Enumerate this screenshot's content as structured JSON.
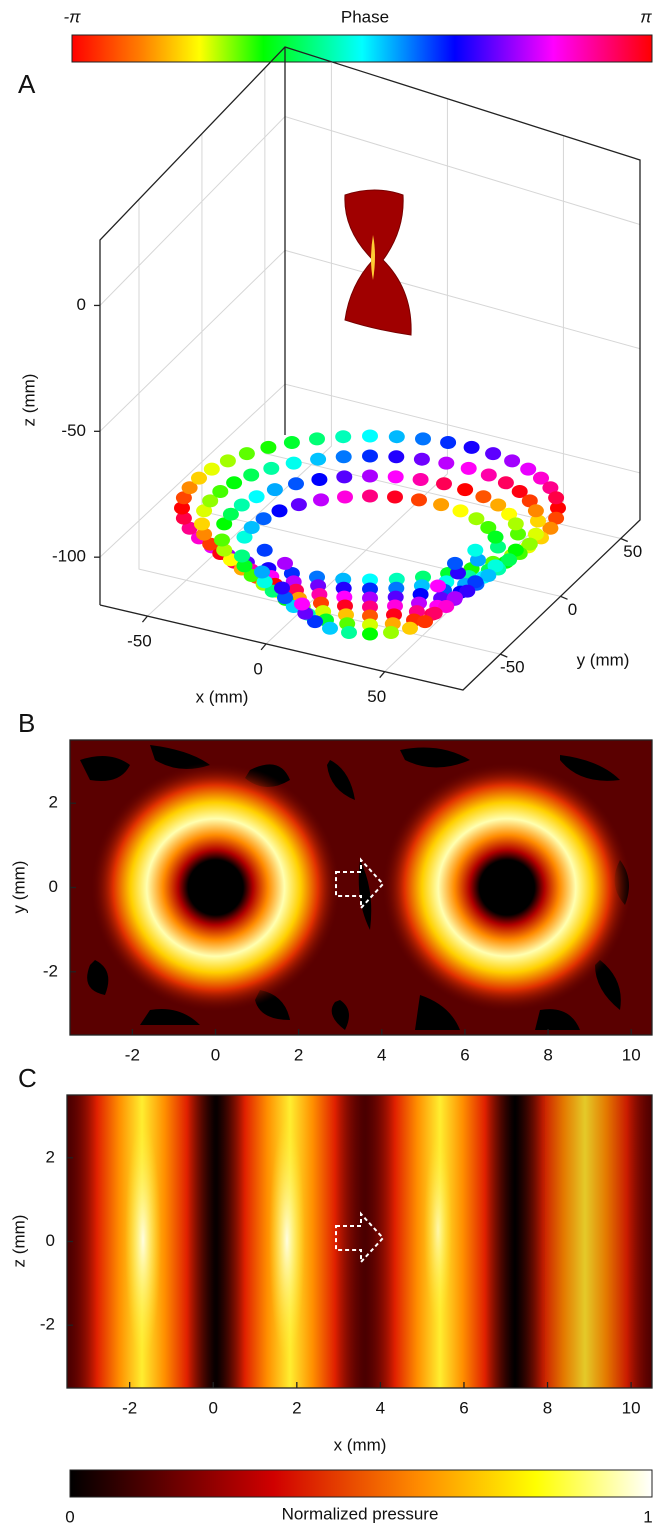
{
  "phase_colorbar": {
    "label": "Phase",
    "min_label": "-π",
    "max_label": "π"
  },
  "chart_data": [
    {
      "type": "surface3d",
      "panel": "A",
      "xlabel": "x (mm)",
      "ylabel": "y (mm)",
      "zlabel": "z (mm)",
      "xlim": [
        -70,
        83
      ],
      "ylim": [
        -81,
        66
      ],
      "zlim": [
        -119,
        26
      ],
      "xticks": [
        -50,
        0,
        50
      ],
      "yticks": [
        -50,
        0,
        50
      ],
      "zticks": [
        -100,
        -50,
        0
      ],
      "grid": true
    },
    {
      "type": "contour",
      "panel": "B",
      "ylabel": "y (mm)",
      "xlim": [
        -3.5,
        10.5
      ],
      "ylim": [
        -3.5,
        3.5
      ],
      "xticks": [
        -2,
        0,
        2,
        4,
        6,
        8,
        10
      ],
      "yticks": [
        -2,
        0,
        2
      ]
    },
    {
      "type": "contour",
      "panel": "C",
      "xlabel": "x (mm)",
      "ylabel": "z (mm)",
      "xlim": [
        -3.5,
        10.5
      ],
      "ylim": [
        -3.5,
        3.5
      ],
      "xticks": [
        -2,
        0,
        2,
        4,
        6,
        8,
        10
      ],
      "yticks": [
        -2,
        0,
        2
      ]
    }
  ],
  "pressure_colorbar": {
    "label": "Normalized pressure",
    "min": 0,
    "max": 1
  }
}
